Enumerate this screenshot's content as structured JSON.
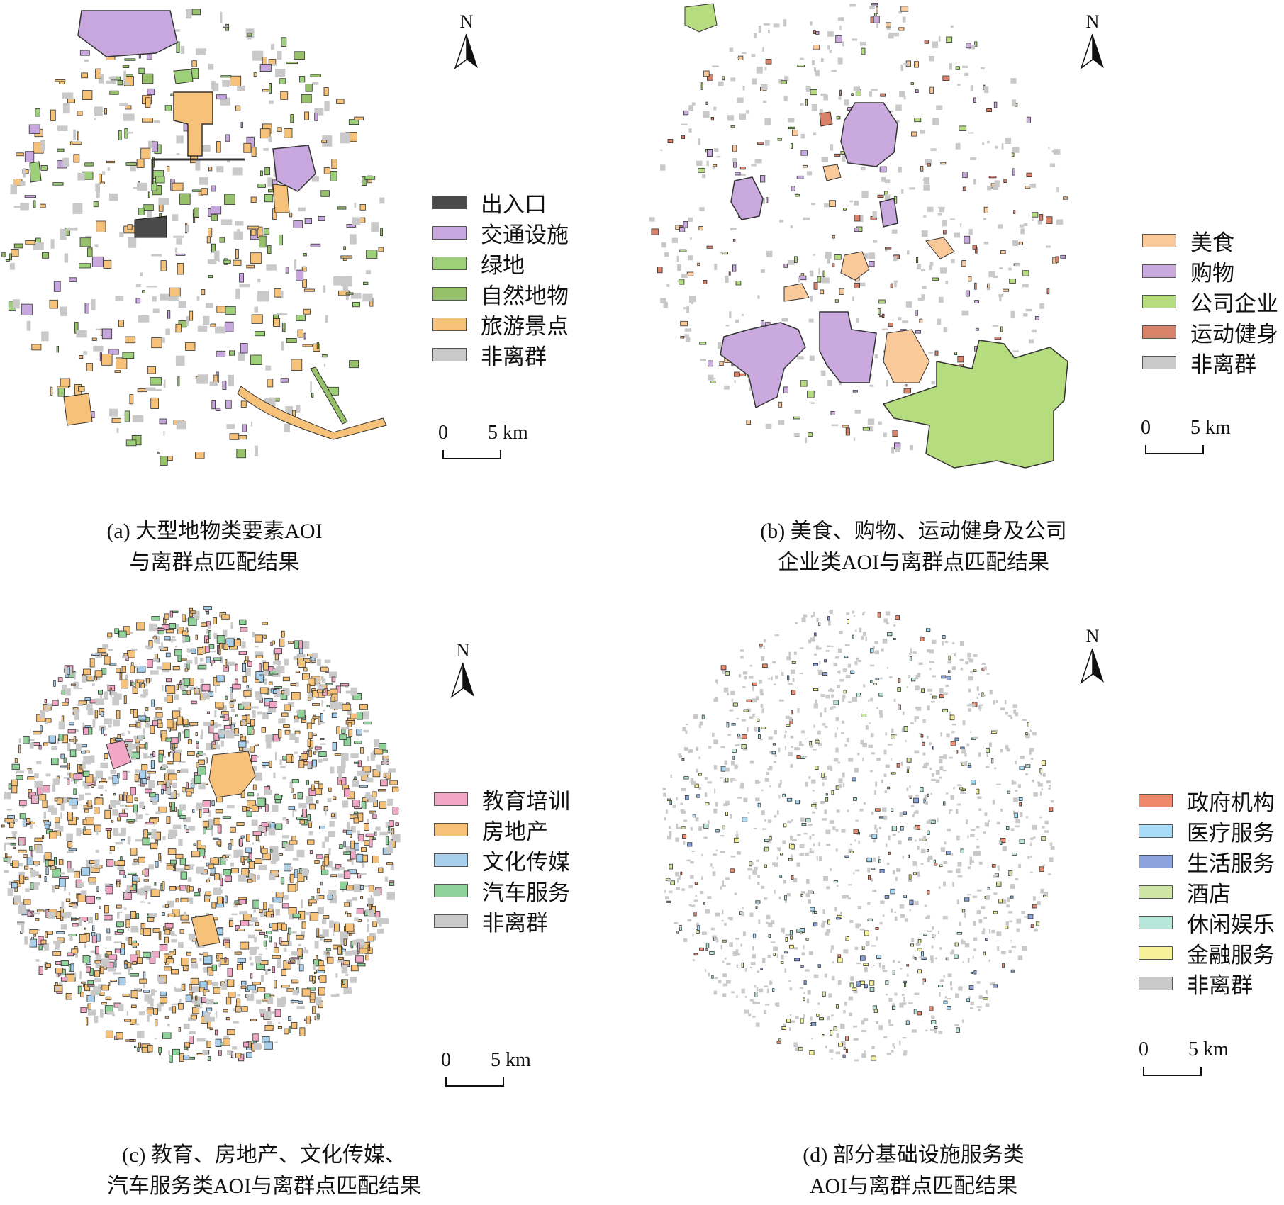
{
  "panels": [
    {
      "id": "a",
      "north_label": "N",
      "legend": [
        {
          "label": "出入口",
          "color": "#4a4a4a"
        },
        {
          "label": "交通设施",
          "color": "#c7a7de"
        },
        {
          "label": "绿地",
          "color": "#9ed07a"
        },
        {
          "label": "自然地物",
          "color": "#97c06b"
        },
        {
          "label": "旅游景点",
          "color": "#f6c27a"
        },
        {
          "label": "非离群",
          "color": "#c9c9c9"
        }
      ],
      "scale": {
        "start": "0",
        "end": "5 km"
      },
      "caption": [
        "(a) 大型地物类要素AOI",
        "与离群点匹配结果"
      ]
    },
    {
      "id": "b",
      "north_label": "N",
      "legend": [
        {
          "label": "美食",
          "color": "#f9c99a"
        },
        {
          "label": "购物",
          "color": "#c9a9de"
        },
        {
          "label": "公司企业",
          "color": "#b5dc7e"
        },
        {
          "label": "运动健身",
          "color": "#d9826a"
        },
        {
          "label": "非离群",
          "color": "#c9c9c9"
        }
      ],
      "scale": {
        "start": "0",
        "end": "5 km"
      },
      "caption": [
        "(b) 美食、购物、运动健身及公司",
        "企业类AOI与离群点匹配结果"
      ]
    },
    {
      "id": "c",
      "north_label": "N",
      "legend": [
        {
          "label": "教育培训",
          "color": "#f0a6c4"
        },
        {
          "label": "房地产",
          "color": "#f6c27a"
        },
        {
          "label": "文化传媒",
          "color": "#a8d0ec"
        },
        {
          "label": "汽车服务",
          "color": "#8fd29a"
        },
        {
          "label": "非离群",
          "color": "#c9c9c9"
        }
      ],
      "scale": {
        "start": "0",
        "end": "5 km"
      },
      "caption": [
        "(c) 教育、房地产、文化传媒、",
        "汽车服务类AOI与离群点匹配结果"
      ]
    },
    {
      "id": "d",
      "north_label": "N",
      "legend": [
        {
          "label": "政府机构",
          "color": "#ee8a6b"
        },
        {
          "label": "医疗服务",
          "color": "#a9dcf6"
        },
        {
          "label": "生活服务",
          "color": "#8aa3dd"
        },
        {
          "label": "酒店",
          "color": "#cfe5a6"
        },
        {
          "label": "休闲娱乐",
          "color": "#b8e6da"
        },
        {
          "label": "金融服务",
          "color": "#f6f29a"
        },
        {
          "label": "非离群",
          "color": "#c9c9c9"
        }
      ],
      "scale": {
        "start": "0",
        "end": "5 km"
      },
      "caption": [
        "(d) 部分基础设施服务类",
        "AOI与离群点匹配结果"
      ]
    }
  ]
}
